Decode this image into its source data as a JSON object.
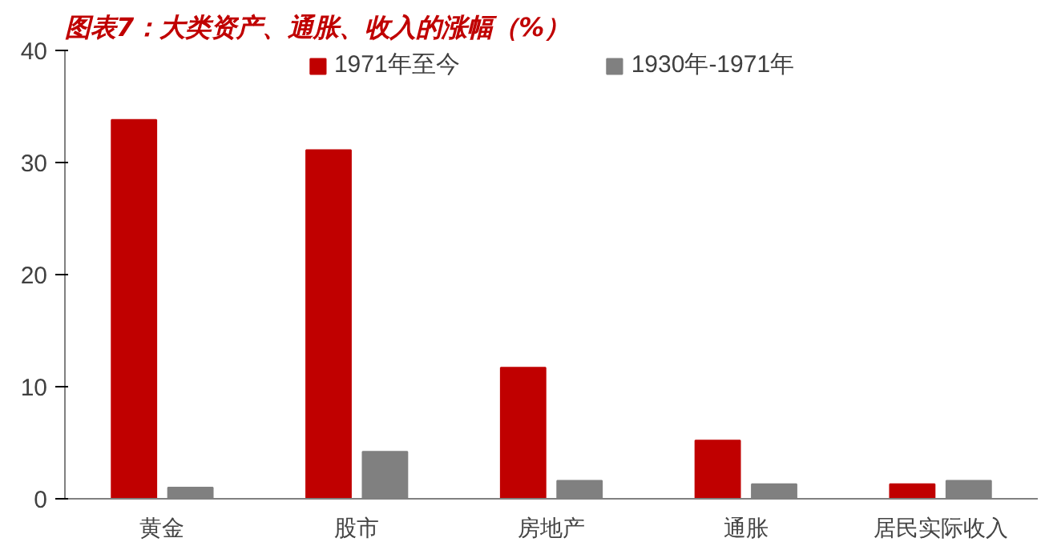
{
  "chart_data": {
    "type": "bar",
    "title": "图表7：大类资产、通胀、收入的涨幅（%）",
    "categories": [
      "黄金",
      "股市",
      "房地产",
      "通胀",
      "居民实际收入"
    ],
    "series": [
      {
        "name": "1971年至今",
        "color": "#c00000",
        "values": [
          33.8,
          31.1,
          11.7,
          5.2,
          1.3
        ]
      },
      {
        "name": "1930年-1971年",
        "color": "#808080",
        "values": [
          1.0,
          4.2,
          1.6,
          1.3,
          1.6
        ]
      }
    ],
    "ylim": [
      0,
      40
    ],
    "yticks": [
      0,
      10,
      20,
      30,
      40
    ],
    "grid": false,
    "legend": "top"
  }
}
